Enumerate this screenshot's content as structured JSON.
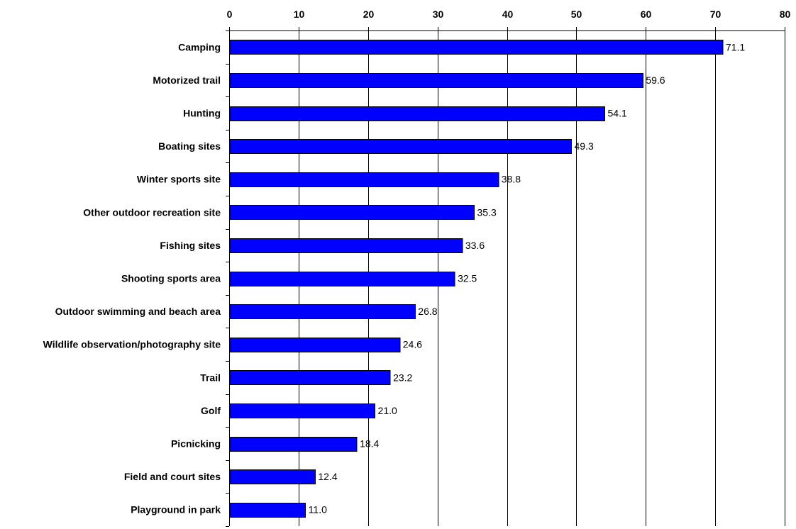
{
  "chart_data": {
    "type": "bar",
    "orientation": "horizontal",
    "title": "",
    "xlabel": "",
    "ylabel": "",
    "xlim": [
      0,
      80
    ],
    "x_ticks": [
      0,
      10,
      20,
      30,
      40,
      50,
      60,
      70,
      80
    ],
    "x_axis_position": "top",
    "grid": true,
    "legend": "none",
    "bar_color": "#0000FF",
    "categories": [
      "Camping",
      "Motorized trail",
      "Hunting",
      "Boating sites",
      "Winter sports site",
      "Other outdoor recreation site",
      "Fishing sites",
      "Shooting sports area",
      "Outdoor swimming and beach area",
      "Wildlife observation/photography site",
      "Trail",
      "Golf",
      "Picnicking",
      "Field and court sites",
      "Playground in park"
    ],
    "values": [
      71.1,
      59.6,
      54.1,
      49.3,
      38.8,
      35.3,
      33.6,
      32.5,
      26.8,
      24.6,
      23.2,
      21.0,
      18.4,
      12.4,
      11.0
    ],
    "value_labels": [
      "71.1",
      "59.6",
      "54.1",
      "49.3",
      "38.8",
      "35.3",
      "33.6",
      "32.5",
      "26.8",
      "24.6",
      "23.2",
      "21.0",
      "18.4",
      "12.4",
      "11.0"
    ]
  }
}
